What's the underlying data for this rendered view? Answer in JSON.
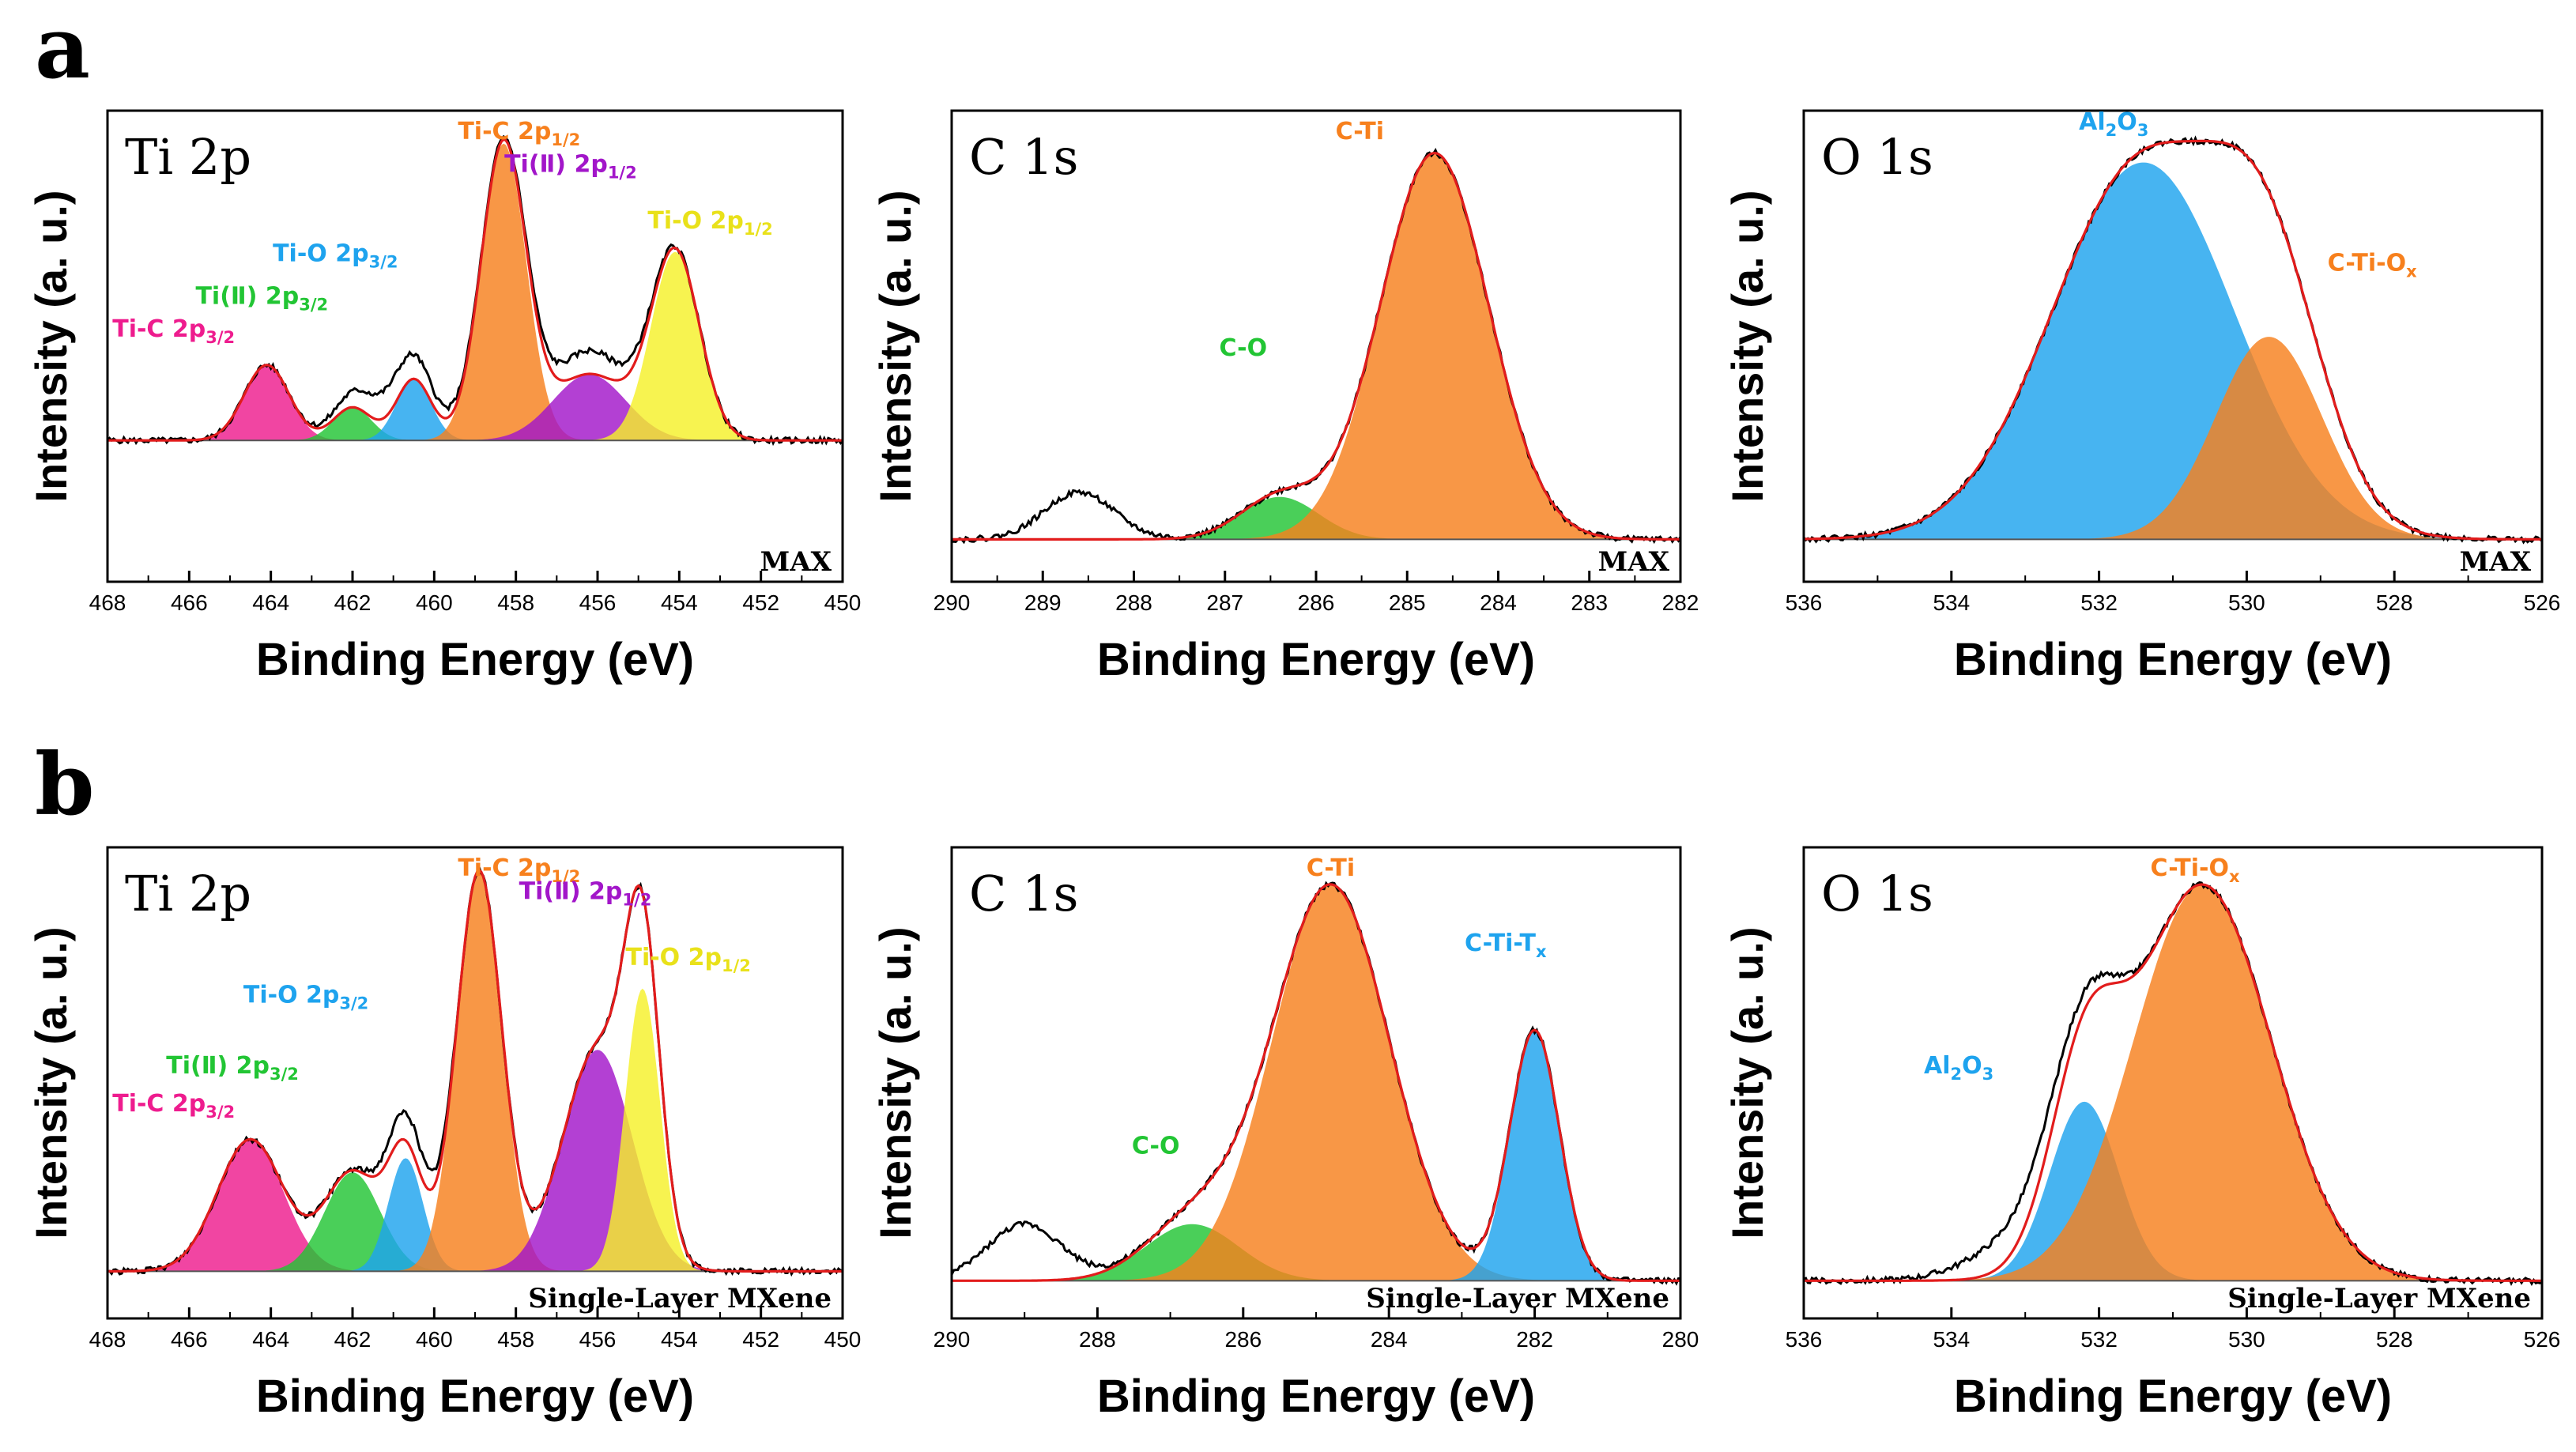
{
  "figure": {
    "labels": [
      "a",
      "b"
    ],
    "palette": {
      "magenta": "#ee1c8e",
      "green": "#22c534",
      "blue": "#1ea3ee",
      "orange": "#f7801d",
      "purple": "#a216c9",
      "yellow": "#f5f02a",
      "teal": "#1b9aa0",
      "fit": "#e21c1c",
      "raw": "#000000"
    }
  },
  "chart_data": [
    {
      "id": "a-ti2p",
      "row": "a",
      "type": "area",
      "title": "Ti 2p",
      "sample": "MAX",
      "xlabel": "Binding Energy (eV)",
      "ylabel": "Intensity (a. u.)",
      "xlim": [
        468,
        450
      ],
      "ylim": [
        0,
        1
      ],
      "xticks": [
        468,
        466,
        464,
        462,
        460,
        458,
        456,
        454,
        452,
        450
      ],
      "baseline": 0.3,
      "peaks": [
        {
          "name": "Ti-C 2p3/2",
          "label": "Ti-C 2p",
          "sub": "3/2",
          "center": 464.1,
          "fwhm": 1.3,
          "height": 0.16,
          "color": "#ee1c8e"
        },
        {
          "name": "Ti(II) 2p3/2",
          "label": "Ti(Ⅱ) 2p",
          "sub": "3/2",
          "center": 462.0,
          "fwhm": 1.1,
          "height": 0.07,
          "color": "#22c534"
        },
        {
          "name": "Ti-O 2p3/2",
          "label": "Ti-O 2p",
          "sub": "3/2",
          "center": 460.5,
          "fwhm": 1.0,
          "height": 0.13,
          "color": "#1ea3ee"
        },
        {
          "name": "Ti-C 2p1/2",
          "label": "Ti-C 2p",
          "sub": "1/2",
          "center": 458.3,
          "fwhm": 1.3,
          "height": 0.63,
          "color": "#f7801d"
        },
        {
          "name": "Ti(II) 2p1/2",
          "label": "Ti(Ⅱ) 2p",
          "sub": "1/2",
          "center": 456.2,
          "fwhm": 2.1,
          "height": 0.14,
          "color": "#a216c9"
        },
        {
          "name": "Ti-O 2p1/2",
          "label": "Ti-O 2p",
          "sub": "1/2",
          "center": 454.1,
          "fwhm": 1.4,
          "height": 0.4,
          "color": "#f5f02a"
        }
      ],
      "raw_shoulders": [
        {
          "center": 461.0,
          "fwhm": 2.2,
          "height": 0.06
        },
        {
          "center": 456.2,
          "fwhm": 2.2,
          "height": 0.05
        }
      ]
    },
    {
      "id": "a-c1s",
      "row": "a",
      "type": "area",
      "title": "C 1s",
      "sample": "MAX",
      "xlabel": "Binding Energy (eV)",
      "ylabel": "Intensity (a. u.)",
      "xlim": [
        290,
        282
      ],
      "ylim": [
        0,
        1
      ],
      "xticks": [
        290,
        289,
        288,
        287,
        286,
        285,
        284,
        283,
        282
      ],
      "baseline": 0.09,
      "peaks": [
        {
          "name": "C-O",
          "label": "C-O",
          "sub": "",
          "center": 286.4,
          "fwhm": 1.0,
          "height": 0.09,
          "color": "#22c534"
        },
        {
          "name": "C-Ti",
          "label": "C-Ti",
          "sub": "",
          "center": 284.7,
          "fwhm": 1.4,
          "height": 0.82,
          "color": "#f7801d"
        }
      ],
      "raw_shoulders": [
        {
          "center": 288.6,
          "fwhm": 0.9,
          "height": 0.1
        }
      ]
    },
    {
      "id": "a-o1s",
      "row": "a",
      "type": "area",
      "title": "O 1s",
      "sample": "MAX",
      "xlabel": "Binding Energy (eV)",
      "ylabel": "Intensity (a. u.)",
      "xlim": [
        536,
        526
      ],
      "ylim": [
        0,
        1
      ],
      "xticks": [
        536,
        534,
        532,
        530,
        528,
        526
      ],
      "baseline": 0.09,
      "peaks": [
        {
          "name": "Al2O3",
          "label": "Al",
          "sub": "2",
          "label2": "O",
          "sub2": "3",
          "center": 531.4,
          "fwhm": 2.9,
          "height": 0.8,
          "color": "#1ea3ee"
        },
        {
          "name": "C-Ti-Ox",
          "label": "C-Ti-O",
          "sub": "x",
          "center": 529.7,
          "fwhm": 1.7,
          "height": 0.43,
          "color": "#f7801d"
        }
      ],
      "raw_shoulders": []
    },
    {
      "id": "b-ti2p",
      "row": "b",
      "type": "area",
      "title": "Ti 2p",
      "sample": "Single-Layer MXene",
      "xlabel": "Binding Energy (eV)",
      "ylabel": "Intensity (a. u.)",
      "xlim": [
        468,
        450
      ],
      "ylim": [
        0,
        1
      ],
      "xticks": [
        468,
        466,
        464,
        462,
        460,
        458,
        456,
        454,
        452,
        450
      ],
      "baseline": 0.1,
      "peaks": [
        {
          "name": "Ti-C 2p3/2",
          "label": "Ti-C 2p",
          "sub": "3/2",
          "center": 464.5,
          "fwhm": 1.9,
          "height": 0.28,
          "color": "#ee1c8e"
        },
        {
          "name": "Ti(II) 2p3/2",
          "label": "Ti(Ⅱ) 2p",
          "sub": "3/2",
          "center": 462.0,
          "fwhm": 1.6,
          "height": 0.21,
          "color": "#22c534"
        },
        {
          "name": "Ti-O 2p3/2",
          "label": "Ti-O 2p",
          "sub": "3/2",
          "center": 460.7,
          "fwhm": 1.0,
          "height": 0.24,
          "color": "#1ea3ee"
        },
        {
          "name": "Ti-C 2p1/2",
          "label": "Ti-C 2p",
          "sub": "1/2",
          "center": 458.9,
          "fwhm": 1.3,
          "height": 0.85,
          "color": "#f7801d"
        },
        {
          "name": "Ti(II) 2p1/2",
          "label": "Ti(Ⅱ) 2p",
          "sub": "1/2",
          "center": 456.0,
          "fwhm": 2.0,
          "height": 0.47,
          "color": "#a216c9"
        },
        {
          "name": "Ti-O 2p1/2",
          "label": "Ti-O 2p",
          "sub": "1/2",
          "center": 454.9,
          "fwhm": 1.0,
          "height": 0.6,
          "color": "#f5f02a"
        }
      ],
      "raw_shoulders": [
        {
          "center": 460.6,
          "fwhm": 1.3,
          "height": 0.06
        }
      ]
    },
    {
      "id": "b-c1s",
      "row": "b",
      "type": "area",
      "title": "C 1s",
      "sample": "Single-Layer MXene",
      "xlabel": "Binding Energy (eV)",
      "ylabel": "Intensity (a. u.)",
      "xlim": [
        290,
        280
      ],
      "ylim": [
        0,
        1
      ],
      "xticks": [
        290,
        288,
        286,
        284,
        282,
        280
      ],
      "baseline": 0.08,
      "peaks": [
        {
          "name": "C-O",
          "label": "C-O",
          "sub": "",
          "center": 286.7,
          "fwhm": 1.5,
          "height": 0.12,
          "color": "#22c534"
        },
        {
          "name": "C-Ti",
          "label": "C-Ti",
          "sub": "",
          "center": 284.8,
          "fwhm": 1.9,
          "height": 0.84,
          "color": "#f7801d"
        },
        {
          "name": "C-Ti-Tx",
          "label": "C-Ti-T",
          "sub": "x",
          "center": 282.0,
          "fwhm": 0.8,
          "height": 0.53,
          "color": "#1ea3ee"
        }
      ],
      "raw_shoulders": [
        {
          "center": 289.0,
          "fwhm": 1.2,
          "height": 0.12
        }
      ]
    },
    {
      "id": "b-o1s",
      "row": "b",
      "type": "area",
      "title": "O 1s",
      "sample": "Single-Layer MXene",
      "xlabel": "Binding Energy (eV)",
      "ylabel": "Intensity (a. u.)",
      "xlim": [
        536,
        526
      ],
      "ylim": [
        0,
        1
      ],
      "xticks": [
        536,
        534,
        532,
        530,
        528,
        526
      ],
      "baseline": 0.08,
      "peaks": [
        {
          "name": "Al2O3",
          "label": "Al",
          "sub": "2",
          "label2": "O",
          "sub2": "3",
          "center": 532.2,
          "fwhm": 1.1,
          "height": 0.38,
          "color": "#1ea3ee"
        },
        {
          "name": "C-Ti-Ox",
          "label": "C-Ti-O",
          "sub": "x",
          "center": 530.6,
          "fwhm": 2.2,
          "height": 0.84,
          "color": "#f7801d"
        }
      ],
      "raw_shoulders": [
        {
          "center": 533.0,
          "fwhm": 1.6,
          "height": 0.08
        }
      ]
    }
  ]
}
